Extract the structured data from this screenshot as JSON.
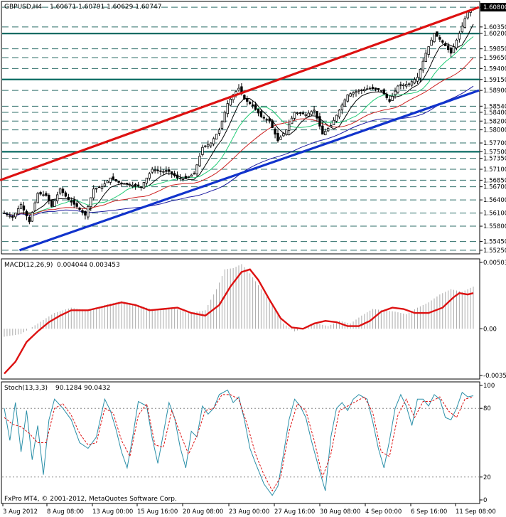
{
  "window": {
    "symbol_title": "GBPUSD,H4",
    "ohlc": "1.60671 1.60791 1.60629 1.60747",
    "copyright": "FxPro MT4, © 2001-2012, MetaQuotes Software Corp."
  },
  "chart_data": [
    {
      "type": "candlestick",
      "title": "GBPUSD,H4",
      "ohlc_last": {
        "open": 1.60671,
        "high": 1.60791,
        "low": 1.60629,
        "close": 1.60747
      },
      "ylim": [
        1.552,
        1.609
      ],
      "price_levels": [
        "1.60800",
        "1.60350",
        "1.60200",
        "1.59850",
        "1.59650",
        "1.59400",
        "1.59150",
        "1.58900",
        "1.58540",
        "1.58400",
        "1.58200",
        "1.58000",
        "1.57700",
        "1.57500",
        "1.57350",
        "1.57100",
        "1.56850",
        "1.56700",
        "1.56400",
        "1.56100",
        "1.55800",
        "1.55450",
        "1.55250"
      ],
      "x_labels": [
        "3 Aug 2012",
        "8 Aug 08:00",
        "13 Aug 00:00",
        "15 Aug 16:00",
        "20 Aug 08:00",
        "23 Aug 00:00",
        "27 Aug 16:00",
        "30 Aug 08:00",
        "4 Sep 00:00",
        "6 Sep 16:00",
        "11 Sep 08:00"
      ],
      "highlighted_levels": [
        1.602,
        1.5915,
        1.575
      ],
      "trendlines": [
        {
          "color": "#dd1111",
          "from": {
            "bar": 0,
            "price": 1.5685
          },
          "to": {
            "bar": 168,
            "price": 1.608
          }
        },
        {
          "color": "#1133cc",
          "from": {
            "bar": 7,
            "price": 1.5525
          },
          "to": {
            "bar": 168,
            "price": 1.589
          }
        }
      ],
      "moving_averages": [
        "#000000",
        "#22cc77",
        "#cc2222",
        "#1a1aa0"
      ],
      "price_path": [
        [
          0,
          1.561
        ],
        [
          3,
          1.56
        ],
        [
          6,
          1.563
        ],
        [
          9,
          1.559
        ],
        [
          12,
          1.5655
        ],
        [
          15,
          1.565
        ],
        [
          17,
          1.5625
        ],
        [
          20,
          1.5665
        ],
        [
          23,
          1.564
        ],
        [
          26,
          1.5625
        ],
        [
          29,
          1.5605
        ],
        [
          32,
          1.5665
        ],
        [
          35,
          1.567
        ],
        [
          38,
          1.569
        ],
        [
          41,
          1.568
        ],
        [
          45,
          1.5675
        ],
        [
          49,
          1.567
        ],
        [
          53,
          1.571
        ],
        [
          56,
          1.5705
        ],
        [
          59,
          1.5705
        ],
        [
          62,
          1.569
        ],
        [
          65,
          1.569
        ],
        [
          68,
          1.57
        ],
        [
          71,
          1.576
        ],
        [
          74,
          1.577
        ],
        [
          77,
          1.58
        ],
        [
          80,
          1.586
        ],
        [
          82,
          1.588
        ],
        [
          84,
          1.5895
        ],
        [
          86,
          1.587
        ],
        [
          89,
          1.5855
        ],
        [
          92,
          1.583
        ],
        [
          95,
          1.582
        ],
        [
          98,
          1.5775
        ],
        [
          101,
          1.58
        ],
        [
          104,
          1.584
        ],
        [
          108,
          1.5835
        ],
        [
          111,
          1.5845
        ],
        [
          114,
          1.579
        ],
        [
          117,
          1.581
        ],
        [
          120,
          1.5845
        ],
        [
          123,
          1.588
        ],
        [
          127,
          1.589
        ],
        [
          131,
          1.5895
        ],
        [
          135,
          1.589
        ],
        [
          138,
          1.5865
        ],
        [
          141,
          1.59
        ],
        [
          145,
          1.5905
        ],
        [
          148,
          1.592
        ],
        [
          151,
          1.5975
        ],
        [
          154,
          1.602
        ],
        [
          157,
          1.6
        ],
        [
          160,
          1.5975
        ],
        [
          163,
          1.602
        ],
        [
          166,
          1.607
        ],
        [
          168,
          1.6075
        ]
      ],
      "candle_bars": 169
    },
    {
      "type": "histogram_line",
      "title": "MACD(12,26,9)",
      "values_printed": "0.004044 0.003453",
      "ylim": [
        -0.00354,
        0.00503
      ],
      "y_ticks": [
        "0.00503",
        "0.00",
        "-0.00354"
      ],
      "histogram_color": "#aaaaaa",
      "signal_color": "#dd1111",
      "signal_path": [
        [
          0,
          -0.0034
        ],
        [
          4,
          -0.0025
        ],
        [
          8,
          -0.001
        ],
        [
          12,
          -0.0002
        ],
        [
          16,
          0.0005
        ],
        [
          20,
          0.001
        ],
        [
          24,
          0.0014
        ],
        [
          30,
          0.0014
        ],
        [
          36,
          0.0017
        ],
        [
          42,
          0.002
        ],
        [
          47,
          0.0018
        ],
        [
          52,
          0.0014
        ],
        [
          57,
          0.0015
        ],
        [
          62,
          0.0016
        ],
        [
          67,
          0.0012
        ],
        [
          72,
          0.001
        ],
        [
          77,
          0.0018
        ],
        [
          81,
          0.0032
        ],
        [
          85,
          0.0043
        ],
        [
          88,
          0.0045
        ],
        [
          91,
          0.0037
        ],
        [
          95,
          0.0022
        ],
        [
          99,
          0.0008
        ],
        [
          103,
          0.0001
        ],
        [
          107,
          0.0
        ],
        [
          111,
          0.0004
        ],
        [
          115,
          0.0006
        ],
        [
          119,
          0.0005
        ],
        [
          123,
          0.0002
        ],
        [
          127,
          0.0002
        ],
        [
          131,
          0.0006
        ],
        [
          135,
          0.0013
        ],
        [
          139,
          0.0016
        ],
        [
          143,
          0.0015
        ],
        [
          147,
          0.0012
        ],
        [
          152,
          0.0012
        ],
        [
          157,
          0.0016
        ],
        [
          161,
          0.0024
        ],
        [
          163,
          0.0027
        ],
        [
          166,
          0.0026
        ],
        [
          168,
          0.0027
        ]
      ],
      "histogram_path": [
        [
          0,
          -0.0006
        ],
        [
          6,
          -0.0004
        ],
        [
          12,
          0.0004
        ],
        [
          18,
          0.0012
        ],
        [
          24,
          0.0016
        ],
        [
          30,
          0.0014
        ],
        [
          36,
          0.0018
        ],
        [
          42,
          0.0021
        ],
        [
          48,
          0.0018
        ],
        [
          54,
          0.0014
        ],
        [
          60,
          0.0016
        ],
        [
          66,
          0.0012
        ],
        [
          72,
          0.0014
        ],
        [
          76,
          0.003
        ],
        [
          79,
          0.0045
        ],
        [
          82,
          0.0046
        ],
        [
          85,
          0.0049
        ],
        [
          88,
          0.0042
        ],
        [
          92,
          0.003
        ],
        [
          96,
          0.0018
        ],
        [
          100,
          0.0004
        ],
        [
          104,
          -0.0002
        ],
        [
          108,
          0.0001
        ],
        [
          112,
          0.0004
        ],
        [
          116,
          0.0002
        ],
        [
          120,
          0.0006
        ],
        [
          124,
          0.0004
        ],
        [
          128,
          0.001
        ],
        [
          132,
          0.0015
        ],
        [
          136,
          0.0014
        ],
        [
          140,
          0.0013
        ],
        [
          144,
          0.0011
        ],
        [
          148,
          0.0016
        ],
        [
          152,
          0.002
        ],
        [
          156,
          0.0026
        ],
        [
          160,
          0.003
        ],
        [
          164,
          0.0028
        ],
        [
          168,
          0.0032
        ]
      ]
    },
    {
      "type": "line",
      "title": "Stoch(13,3,3)",
      "values_printed": "90.1284 90.0432",
      "ylim": [
        0,
        100
      ],
      "y_ticks": [
        "100",
        "80",
        "20",
        "0"
      ],
      "main_color": "#2a8fa8",
      "signal_color": "#dd1111",
      "main_path": [
        [
          0,
          80
        ],
        [
          2,
          52
        ],
        [
          4,
          85
        ],
        [
          6,
          42
        ],
        [
          8,
          78
        ],
        [
          10,
          35
        ],
        [
          12,
          65
        ],
        [
          14,
          22
        ],
        [
          16,
          70
        ],
        [
          18,
          88
        ],
        [
          21,
          80
        ],
        [
          24,
          70
        ],
        [
          27,
          50
        ],
        [
          30,
          45
        ],
        [
          33,
          55
        ],
        [
          36,
          88
        ],
        [
          38,
          78
        ],
        [
          40,
          62
        ],
        [
          42,
          42
        ],
        [
          44,
          28
        ],
        [
          46,
          55
        ],
        [
          48,
          86
        ],
        [
          51,
          82
        ],
        [
          53,
          54
        ],
        [
          55,
          32
        ],
        [
          57,
          58
        ],
        [
          59,
          85
        ],
        [
          61,
          72
        ],
        [
          63,
          46
        ],
        [
          65,
          28
        ],
        [
          67,
          60
        ],
        [
          69,
          55
        ],
        [
          71,
          82
        ],
        [
          73,
          75
        ],
        [
          75,
          80
        ],
        [
          77,
          92
        ],
        [
          80,
          96
        ],
        [
          82,
          85
        ],
        [
          84,
          90
        ],
        [
          86,
          70
        ],
        [
          88,
          45
        ],
        [
          90,
          32
        ],
        [
          93,
          14
        ],
        [
          96,
          4
        ],
        [
          98,
          12
        ],
        [
          100,
          40
        ],
        [
          102,
          70
        ],
        [
          104,
          88
        ],
        [
          106,
          82
        ],
        [
          108,
          72
        ],
        [
          110,
          52
        ],
        [
          113,
          25
        ],
        [
          115,
          8
        ],
        [
          117,
          55
        ],
        [
          119,
          80
        ],
        [
          121,
          85
        ],
        [
          123,
          78
        ],
        [
          125,
          88
        ],
        [
          127,
          92
        ],
        [
          130,
          88
        ],
        [
          132,
          68
        ],
        [
          134,
          45
        ],
        [
          136,
          28
        ],
        [
          138,
          52
        ],
        [
          140,
          80
        ],
        [
          142,
          92
        ],
        [
          144,
          82
        ],
        [
          146,
          65
        ],
        [
          148,
          88
        ],
        [
          150,
          88
        ],
        [
          152,
          82
        ],
        [
          154,
          92
        ],
        [
          156,
          88
        ],
        [
          158,
          72
        ],
        [
          160,
          70
        ],
        [
          162,
          80
        ],
        [
          164,
          94
        ],
        [
          166,
          90
        ],
        [
          168,
          91
        ]
      ],
      "signal_path": [
        [
          0,
          72
        ],
        [
          3,
          66
        ],
        [
          6,
          64
        ],
        [
          9,
          58
        ],
        [
          12,
          50
        ],
        [
          15,
          50
        ],
        [
          18,
          80
        ],
        [
          21,
          84
        ],
        [
          24,
          74
        ],
        [
          27,
          58
        ],
        [
          30,
          48
        ],
        [
          33,
          50
        ],
        [
          36,
          80
        ],
        [
          39,
          76
        ],
        [
          42,
          52
        ],
        [
          45,
          38
        ],
        [
          48,
          74
        ],
        [
          51,
          84
        ],
        [
          54,
          48
        ],
        [
          57,
          46
        ],
        [
          60,
          78
        ],
        [
          63,
          58
        ],
        [
          66,
          40
        ],
        [
          69,
          56
        ],
        [
          72,
          78
        ],
        [
          75,
          80
        ],
        [
          78,
          92
        ],
        [
          81,
          92
        ],
        [
          84,
          88
        ],
        [
          87,
          66
        ],
        [
          90,
          40
        ],
        [
          93,
          22
        ],
        [
          96,
          8
        ],
        [
          99,
          20
        ],
        [
          102,
          60
        ],
        [
          105,
          84
        ],
        [
          108,
          78
        ],
        [
          111,
          52
        ],
        [
          114,
          20
        ],
        [
          117,
          40
        ],
        [
          120,
          78
        ],
        [
          123,
          82
        ],
        [
          126,
          86
        ],
        [
          129,
          90
        ],
        [
          132,
          76
        ],
        [
          135,
          42
        ],
        [
          138,
          38
        ],
        [
          141,
          74
        ],
        [
          144,
          88
        ],
        [
          147,
          72
        ],
        [
          150,
          86
        ],
        [
          153,
          86
        ],
        [
          156,
          90
        ],
        [
          159,
          78
        ],
        [
          162,
          72
        ],
        [
          165,
          88
        ],
        [
          168,
          90
        ]
      ]
    }
  ]
}
